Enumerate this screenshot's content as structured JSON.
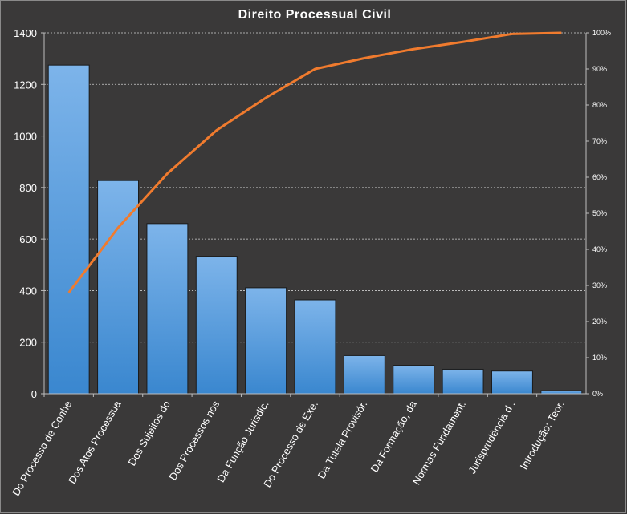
{
  "chart_data": {
    "type": "bar",
    "title": "Direito  Processual  Civil",
    "categories": [
      "Do Processo de Conhe",
      "Dos Atos Processua",
      "Dos Sujeitos do",
      "Dos Processos nos",
      "Da Função Jurisdic.",
      "Do Processo de Exe.",
      "Da Tutela Provisór.",
      "Da Formação, da",
      "Normas Fundament.",
      "Jurisprudência d .",
      "Introdução: Teor."
    ],
    "series": [
      {
        "type": "bar",
        "values": [
          1275,
          827,
          660,
          533,
          411,
          364,
          148,
          110,
          95,
          88,
          12
        ]
      },
      {
        "type": "line",
        "axis": "secondary",
        "values": [
          0.28,
          0.46,
          0.61,
          0.73,
          0.82,
          0.9,
          0.93,
          0.955,
          0.975,
          0.997,
          1.0
        ]
      }
    ],
    "ylim": [
      0,
      1400
    ],
    "yticks": [
      "0",
      "200",
      "400",
      "600",
      "800",
      "1000",
      "1200",
      "1400"
    ],
    "y2lim": [
      0,
      1
    ],
    "y2ticks": [
      "0%",
      "10%",
      "20%",
      "30%",
      "40%",
      "50%",
      "60%",
      "70%",
      "80%",
      "90%",
      "100%"
    ],
    "grid": true,
    "colors": {
      "bar_light": "#7db4ea",
      "bar_dark": "#3a87cf",
      "line": "#f07b2e",
      "background": "#3a3939"
    }
  }
}
